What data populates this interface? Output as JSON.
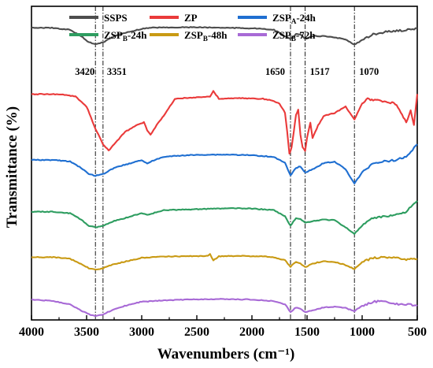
{
  "chart_data": {
    "type": "line",
    "xlabel": "Wavenumbers (cm⁻¹)",
    "ylabel": "Transmittance (%)",
    "xlim": [
      4000,
      500
    ],
    "x_reversed": true,
    "x_ticks": [
      "4000",
      "3500",
      "3000",
      "2500",
      "2000",
      "1500",
      "1000",
      "500"
    ],
    "y_ticks_shown": false,
    "legend_position": "top",
    "reference_peaks": [
      {
        "x": 3420,
        "label": "3420"
      },
      {
        "x": 3351,
        "label": "3351"
      },
      {
        "x": 1650,
        "label": "1650"
      },
      {
        "x": 1517,
        "label": "1517"
      },
      {
        "x": 1070,
        "label": "1070"
      }
    ],
    "series": [
      {
        "name": "SSPS",
        "legend_main": "SSPS",
        "legend_sub": "",
        "legend_suffix": "",
        "color": "#4d4d4d",
        "x": [
          4000,
          3800,
          3650,
          3550,
          3480,
          3420,
          3351,
          3250,
          3100,
          3000,
          2900,
          2700,
          2500,
          2300,
          2000,
          1800,
          1700,
          1650,
          1600,
          1560,
          1517,
          1450,
          1350,
          1250,
          1150,
          1070,
          1000,
          900,
          800,
          700,
          600,
          500
        ],
        "y": [
          0.932,
          0.931,
          0.925,
          0.905,
          0.885,
          0.88,
          0.885,
          0.905,
          0.92,
          0.928,
          0.932,
          0.933,
          0.933,
          0.932,
          0.93,
          0.925,
          0.905,
          0.895,
          0.912,
          0.91,
          0.895,
          0.905,
          0.905,
          0.9,
          0.895,
          0.878,
          0.892,
          0.91,
          0.918,
          0.922,
          0.924,
          0.93
        ]
      },
      {
        "name": "ZP",
        "legend_main": "ZP",
        "legend_sub": "",
        "legend_suffix": "",
        "color": "#ea3a3a",
        "x": [
          4000,
          3900,
          3800,
          3700,
          3600,
          3500,
          3420,
          3351,
          3300,
          3250,
          3150,
          3050,
          2980,
          2950,
          2920,
          2850,
          2800,
          2700,
          2500,
          2380,
          2350,
          2300,
          2100,
          1900,
          1800,
          1750,
          1700,
          1680,
          1660,
          1640,
          1620,
          1600,
          1580,
          1560,
          1540,
          1517,
          1500,
          1470,
          1450,
          1400,
          1350,
          1250,
          1150,
          1070,
          1000,
          950,
          900,
          800,
          700,
          650,
          600,
          560,
          530,
          500
        ],
        "y": [
          0.72,
          0.72,
          0.72,
          0.718,
          0.712,
          0.68,
          0.61,
          0.56,
          0.54,
          0.56,
          0.6,
          0.62,
          0.63,
          0.605,
          0.59,
          0.63,
          0.65,
          0.705,
          0.71,
          0.712,
          0.73,
          0.705,
          0.707,
          0.705,
          0.698,
          0.69,
          0.66,
          0.6,
          0.53,
          0.55,
          0.6,
          0.655,
          0.67,
          0.59,
          0.55,
          0.54,
          0.58,
          0.63,
          0.58,
          0.62,
          0.65,
          0.66,
          0.68,
          0.64,
          0.69,
          0.705,
          0.7,
          0.698,
          0.69,
          0.66,
          0.63,
          0.67,
          0.62,
          0.72
        ]
      },
      {
        "name": "ZSPA-24h",
        "legend_main": "ZSP",
        "legend_sub": "A",
        "legend_suffix": "-24h",
        "color": "#1f6fd1",
        "x": [
          4000,
          3800,
          3650,
          3550,
          3480,
          3420,
          3351,
          3250,
          3100,
          3000,
          2950,
          2920,
          2800,
          2600,
          2400,
          2200,
          2000,
          1800,
          1700,
          1650,
          1600,
          1560,
          1517,
          1450,
          1350,
          1250,
          1150,
          1070,
          1000,
          900,
          800,
          700,
          600,
          500
        ],
        "y": [
          0.51,
          0.51,
          0.505,
          0.485,
          0.465,
          0.46,
          0.465,
          0.485,
          0.5,
          0.51,
          0.498,
          0.505,
          0.52,
          0.525,
          0.527,
          0.527,
          0.525,
          0.52,
          0.5,
          0.46,
          0.485,
          0.49,
          0.47,
          0.48,
          0.5,
          0.505,
          0.48,
          0.435,
          0.47,
          0.5,
          0.505,
          0.51,
          0.52,
          0.56
        ]
      },
      {
        "name": "ZSPB-24h",
        "legend_main": "ZSP",
        "legend_sub": "B",
        "legend_suffix": "-24h",
        "color": "#2e9d60",
        "x": [
          4000,
          3800,
          3650,
          3550,
          3480,
          3420,
          3351,
          3250,
          3100,
          3000,
          2950,
          2800,
          2600,
          2400,
          2200,
          2000,
          1800,
          1700,
          1650,
          1600,
          1560,
          1517,
          1450,
          1350,
          1250,
          1150,
          1070,
          1000,
          900,
          800,
          700,
          600,
          500
        ],
        "y": [
          0.345,
          0.345,
          0.34,
          0.32,
          0.3,
          0.295,
          0.3,
          0.315,
          0.33,
          0.34,
          0.335,
          0.35,
          0.352,
          0.354,
          0.356,
          0.355,
          0.35,
          0.33,
          0.3,
          0.325,
          0.322,
          0.31,
          0.315,
          0.32,
          0.318,
          0.295,
          0.275,
          0.3,
          0.325,
          0.33,
          0.335,
          0.345,
          0.38
        ]
      },
      {
        "name": "ZSPB-48h",
        "legend_main": "ZSP",
        "legend_sub": "B",
        "legend_suffix": "-48h",
        "color": "#c99a14",
        "x": [
          4000,
          3800,
          3650,
          3550,
          3480,
          3420,
          3351,
          3250,
          3100,
          3000,
          2800,
          2600,
          2400,
          2380,
          2350,
          2300,
          2100,
          1900,
          1800,
          1700,
          1650,
          1600,
          1560,
          1517,
          1450,
          1350,
          1250,
          1150,
          1070,
          1000,
          900,
          800,
          700,
          600,
          500
        ],
        "y": [
          0.2,
          0.2,
          0.195,
          0.178,
          0.165,
          0.16,
          0.165,
          0.178,
          0.19,
          0.198,
          0.202,
          0.203,
          0.204,
          0.21,
          0.19,
          0.203,
          0.204,
          0.203,
          0.2,
          0.19,
          0.17,
          0.185,
          0.18,
          0.168,
          0.18,
          0.187,
          0.185,
          0.175,
          0.162,
          0.185,
          0.198,
          0.2,
          0.197,
          0.193,
          0.195
        ]
      },
      {
        "name": "ZSPB-72h",
        "legend_main": "ZSP",
        "legend_sub": "B",
        "legend_suffix": "-72h",
        "color": "#a86ad6",
        "x": [
          4000,
          3800,
          3650,
          3550,
          3480,
          3420,
          3351,
          3250,
          3100,
          3000,
          2800,
          2600,
          2400,
          2200,
          2000,
          1800,
          1700,
          1650,
          1600,
          1560,
          1517,
          1450,
          1350,
          1250,
          1150,
          1070,
          1000,
          900,
          800,
          700,
          600,
          500
        ],
        "y": [
          0.065,
          0.06,
          0.05,
          0.03,
          0.018,
          0.012,
          0.017,
          0.035,
          0.05,
          0.058,
          0.062,
          0.065,
          0.066,
          0.066,
          0.065,
          0.06,
          0.05,
          0.025,
          0.04,
          0.035,
          0.025,
          0.03,
          0.04,
          0.042,
          0.038,
          0.028,
          0.045,
          0.058,
          0.06,
          0.05,
          0.05,
          0.045
        ]
      }
    ]
  }
}
